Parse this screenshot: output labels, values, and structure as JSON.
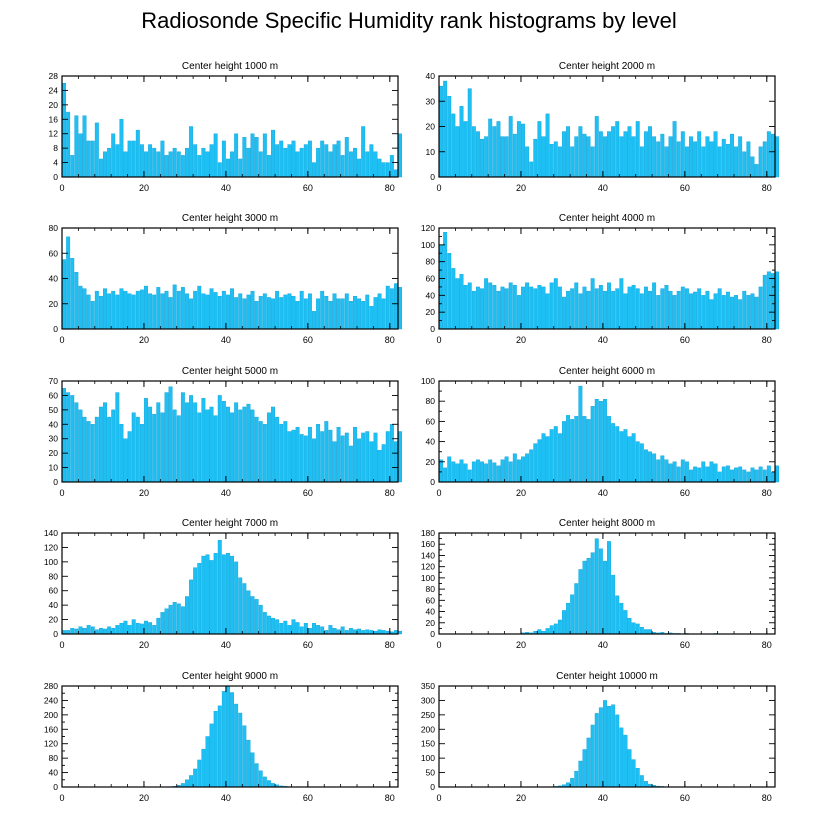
{
  "figure": {
    "title": "Radiosonde Specific Humidity rank histograms by level"
  },
  "colors": {
    "bar": "#1ec0f4",
    "bar_edge": "#0d9fd6",
    "axis": "#000000",
    "background": "#ffffff"
  },
  "chart_data": [
    {
      "type": "bar",
      "title": "Center height 1000 m",
      "xlabel": "",
      "ylabel": "",
      "xlim": [
        0,
        82
      ],
      "ylim": [
        0,
        28
      ],
      "xticks": [
        0,
        20,
        40,
        60,
        80
      ],
      "yticks": [
        0,
        4,
        8,
        12,
        16,
        20,
        24,
        28
      ],
      "x_start": 0,
      "values": [
        26,
        18,
        6,
        17,
        12,
        17,
        10,
        10,
        15,
        5,
        7,
        8,
        12,
        9,
        16,
        7,
        10,
        10,
        13,
        9,
        7,
        9,
        8,
        7,
        10,
        6,
        7,
        8,
        7,
        6,
        8,
        14,
        9,
        6,
        8,
        7,
        9,
        12,
        4,
        10,
        5,
        7,
        12,
        5,
        11,
        8,
        12,
        11,
        7,
        12,
        6,
        13,
        9,
        10,
        8,
        9,
        10,
        7,
        8,
        9,
        10,
        4,
        8,
        10,
        9,
        7,
        9,
        10,
        6,
        11,
        7,
        8,
        5,
        14,
        7,
        9,
        7,
        5,
        4,
        4,
        6,
        2,
        12
      ]
    },
    {
      "type": "bar",
      "title": "Center height 2000 m",
      "xlabel": "",
      "ylabel": "",
      "xlim": [
        0,
        82
      ],
      "ylim": [
        0,
        40
      ],
      "xticks": [
        0,
        20,
        40,
        60,
        80
      ],
      "yticks": [
        0,
        10,
        20,
        30,
        40
      ],
      "x_start": 0,
      "values": [
        36,
        38,
        32,
        25,
        20,
        28,
        22,
        35,
        20,
        18,
        15,
        16,
        23,
        20,
        22,
        16,
        16,
        24,
        17,
        22,
        21,
        12,
        6,
        15,
        22,
        16,
        25,
        13,
        14,
        12,
        18,
        20,
        12,
        16,
        20,
        17,
        16,
        12,
        24,
        18,
        16,
        18,
        20,
        22,
        16,
        18,
        20,
        16,
        22,
        12,
        18,
        20,
        16,
        14,
        17,
        12,
        16,
        22,
        14,
        18,
        12,
        16,
        14,
        18,
        12,
        16,
        14,
        18,
        12,
        15,
        13,
        17,
        12,
        16,
        10,
        14,
        8,
        5,
        12,
        14,
        18,
        17,
        16
      ]
    },
    {
      "type": "bar",
      "title": "Center height 3000 m",
      "xlabel": "",
      "ylabel": "",
      "xlim": [
        0,
        82
      ],
      "ylim": [
        0,
        80
      ],
      "xticks": [
        0,
        20,
        40,
        60,
        80
      ],
      "yticks": [
        0,
        20,
        40,
        60,
        80
      ],
      "x_start": 0,
      "values": [
        55,
        73,
        56,
        45,
        34,
        32,
        27,
        22,
        30,
        26,
        32,
        28,
        30,
        27,
        32,
        30,
        28,
        27,
        30,
        31,
        34,
        28,
        27,
        33,
        28,
        30,
        25,
        35,
        30,
        33,
        28,
        24,
        30,
        34,
        28,
        27,
        32,
        29,
        26,
        30,
        27,
        32,
        25,
        28,
        24,
        27,
        30,
        22,
        26,
        28,
        25,
        24,
        30,
        25,
        27,
        28,
        26,
        22,
        30,
        24,
        28,
        14,
        24,
        30,
        26,
        22,
        28,
        24,
        24,
        28,
        22,
        26,
        24,
        22,
        27,
        18,
        25,
        28,
        24,
        34,
        32,
        36,
        33
      ]
    },
    {
      "type": "bar",
      "title": "Center height 4000 m",
      "xlabel": "",
      "ylabel": "",
      "xlim": [
        0,
        82
      ],
      "ylim": [
        0,
        120
      ],
      "xticks": [
        0,
        20,
        40,
        60,
        80
      ],
      "yticks": [
        0,
        10,
        20,
        30,
        40,
        50,
        60,
        70,
        80,
        90,
        100,
        110,
        120
      ],
      "ytick_labels": [
        0,
        20,
        40,
        60,
        80,
        100,
        120
      ],
      "x_start": 0,
      "values": [
        100,
        115,
        90,
        72,
        60,
        65,
        52,
        55,
        45,
        50,
        48,
        60,
        55,
        52,
        45,
        50,
        48,
        55,
        52,
        40,
        50,
        55,
        50,
        48,
        52,
        50,
        42,
        55,
        60,
        50,
        38,
        45,
        48,
        55,
        42,
        50,
        45,
        60,
        48,
        52,
        45,
        55,
        45,
        48,
        60,
        42,
        50,
        52,
        48,
        42,
        50,
        45,
        55,
        40,
        48,
        52,
        45,
        40,
        45,
        50,
        48,
        42,
        44,
        48,
        40,
        45,
        35,
        42,
        48,
        40,
        44,
        38,
        40,
        35,
        45,
        40,
        42,
        38,
        50,
        64,
        68,
        66,
        68
      ]
    },
    {
      "type": "bar",
      "title": "Center height 5000 m",
      "xlabel": "",
      "ylabel": "",
      "xlim": [
        0,
        82
      ],
      "ylim": [
        0,
        70
      ],
      "xticks": [
        0,
        20,
        40,
        60,
        80
      ],
      "yticks": [
        0,
        10,
        20,
        30,
        40,
        50,
        60,
        70
      ],
      "x_start": 0,
      "values": [
        65,
        62,
        60,
        55,
        50,
        45,
        42,
        40,
        45,
        52,
        55,
        45,
        50,
        62,
        40,
        30,
        35,
        48,
        45,
        40,
        58,
        52,
        47,
        55,
        48,
        62,
        66,
        50,
        46,
        62,
        55,
        60,
        55,
        48,
        58,
        50,
        52,
        46,
        60,
        56,
        52,
        48,
        55,
        50,
        52,
        54,
        50,
        45,
        42,
        40,
        48,
        52,
        45,
        40,
        42,
        35,
        36,
        38,
        33,
        32,
        38,
        30,
        40,
        35,
        42,
        36,
        28,
        38,
        32,
        34,
        25,
        38,
        30,
        34,
        35,
        28,
        34,
        22,
        26,
        35,
        40,
        28,
        35
      ]
    },
    {
      "type": "bar",
      "title": "Center height 6000 m",
      "xlabel": "",
      "ylabel": "",
      "xlim": [
        0,
        82
      ],
      "ylim": [
        0,
        100
      ],
      "xticks": [
        0,
        20,
        40,
        60,
        80
      ],
      "yticks": [
        0,
        10,
        20,
        30,
        40,
        50,
        60,
        70,
        80,
        90,
        100
      ],
      "ytick_labels": [
        0,
        20,
        40,
        60,
        80,
        100
      ],
      "x_start": 0,
      "values": [
        22,
        14,
        25,
        20,
        18,
        22,
        18,
        12,
        20,
        22,
        20,
        18,
        22,
        19,
        16,
        22,
        25,
        20,
        28,
        22,
        25,
        28,
        32,
        38,
        42,
        48,
        45,
        52,
        55,
        48,
        60,
        66,
        62,
        65,
        95,
        65,
        62,
        75,
        82,
        80,
        82,
        65,
        58,
        55,
        50,
        52,
        45,
        48,
        40,
        38,
        32,
        30,
        28,
        22,
        26,
        22,
        18,
        20,
        15,
        22,
        20,
        12,
        15,
        14,
        20,
        15,
        20,
        18,
        10,
        15,
        16,
        12,
        14,
        15,
        12,
        10,
        14,
        12,
        15,
        12,
        16,
        10,
        16
      ]
    },
    {
      "type": "bar",
      "title": "Center height 7000 m",
      "xlabel": "",
      "ylabel": "",
      "xlim": [
        0,
        82
      ],
      "ylim": [
        0,
        140
      ],
      "xticks": [
        0,
        20,
        40,
        60,
        80
      ],
      "yticks": [
        0,
        20,
        40,
        60,
        80,
        100,
        120,
        140
      ],
      "x_start": 0,
      "values": [
        5,
        5,
        8,
        7,
        10,
        8,
        12,
        10,
        6,
        8,
        7,
        10,
        8,
        12,
        15,
        18,
        12,
        20,
        15,
        14,
        18,
        16,
        12,
        22,
        30,
        35,
        40,
        44,
        42,
        38,
        52,
        75,
        92,
        98,
        108,
        110,
        102,
        112,
        130,
        110,
        112,
        108,
        100,
        78,
        70,
        60,
        52,
        48,
        40,
        30,
        25,
        22,
        20,
        15,
        18,
        12,
        20,
        16,
        10,
        15,
        8,
        15,
        12,
        10,
        5,
        12,
        8,
        6,
        10,
        5,
        8,
        6,
        7,
        5,
        6,
        5,
        4,
        6,
        5,
        4,
        3,
        5,
        4
      ]
    },
    {
      "type": "bar",
      "title": "Center height 8000 m",
      "xlabel": "",
      "ylabel": "",
      "xlim": [
        0,
        82
      ],
      "ylim": [
        0,
        180
      ],
      "xticks": [
        0,
        20,
        40,
        60,
        80
      ],
      "yticks": [
        0,
        10,
        20,
        30,
        40,
        50,
        60,
        70,
        80,
        90,
        100,
        110,
        120,
        130,
        140,
        150,
        160,
        170,
        180
      ],
      "ytick_labels": [
        0,
        20,
        40,
        60,
        80,
        100,
        120,
        140,
        160,
        180
      ],
      "x_start": 0,
      "values": [
        0,
        0,
        0,
        0,
        0,
        0,
        0,
        0,
        0,
        0,
        0,
        0,
        0,
        0,
        0,
        0,
        0,
        0,
        0,
        0,
        2,
        3,
        2,
        5,
        8,
        5,
        10,
        15,
        18,
        25,
        42,
        55,
        70,
        90,
        115,
        130,
        135,
        145,
        170,
        152,
        130,
        165,
        105,
        68,
        55,
        42,
        28,
        20,
        18,
        12,
        8,
        8,
        3,
        2,
        3,
        1,
        2,
        1,
        1,
        0,
        1,
        0,
        0,
        0,
        0,
        0,
        0,
        1,
        0,
        0,
        0,
        0,
        0,
        0,
        0,
        0,
        0,
        0,
        0,
        0,
        0,
        0,
        0
      ]
    },
    {
      "type": "bar",
      "title": "Center height 9000 m",
      "xlabel": "",
      "ylabel": "",
      "xlim": [
        0,
        82
      ],
      "ylim": [
        0,
        280
      ],
      "xticks": [
        0,
        20,
        40,
        60,
        80
      ],
      "yticks": [
        0,
        20,
        40,
        60,
        80,
        100,
        120,
        140,
        160,
        180,
        200,
        220,
        240,
        260,
        280
      ],
      "ytick_labels": [
        0,
        40,
        80,
        120,
        160,
        200,
        240,
        280
      ],
      "x_start": 0,
      "values": [
        0,
        0,
        0,
        0,
        0,
        0,
        0,
        0,
        0,
        0,
        0,
        0,
        0,
        0,
        0,
        0,
        0,
        0,
        0,
        0,
        0,
        0,
        0,
        0,
        0,
        0,
        1,
        2,
        5,
        10,
        20,
        32,
        50,
        75,
        105,
        140,
        175,
        210,
        225,
        265,
        280,
        262,
        230,
        205,
        170,
        130,
        95,
        65,
        45,
        28,
        18,
        10,
        6,
        3,
        2,
        1,
        0,
        1,
        0,
        0,
        0,
        0,
        0,
        0,
        0,
        0,
        0,
        0,
        0,
        0,
        0,
        0,
        0,
        0,
        0,
        0,
        0,
        0,
        0,
        0,
        0,
        0,
        0
      ]
    },
    {
      "type": "bar",
      "title": "Center height 10000 m",
      "xlabel": "",
      "ylabel": "",
      "xlim": [
        0,
        82
      ],
      "ylim": [
        0,
        350
      ],
      "xticks": [
        0,
        20,
        40,
        60,
        80
      ],
      "yticks": [
        0,
        50,
        100,
        150,
        200,
        250,
        300,
        350
      ],
      "x_start": 0,
      "values": [
        0,
        0,
        0,
        0,
        0,
        0,
        0,
        0,
        0,
        0,
        0,
        0,
        0,
        0,
        0,
        0,
        0,
        0,
        0,
        0,
        0,
        0,
        0,
        0,
        0,
        0,
        0,
        1,
        2,
        4,
        8,
        15,
        30,
        55,
        90,
        130,
        170,
        215,
        255,
        275,
        300,
        280,
        285,
        250,
        205,
        180,
        130,
        95,
        65,
        40,
        20,
        10,
        6,
        3,
        2,
        1,
        1,
        0,
        0,
        0,
        0,
        0,
        0,
        0,
        0,
        0,
        0,
        0,
        0,
        0,
        0,
        0,
        0,
        0,
        0,
        0,
        0,
        0,
        0,
        0,
        0,
        0,
        0
      ]
    }
  ]
}
